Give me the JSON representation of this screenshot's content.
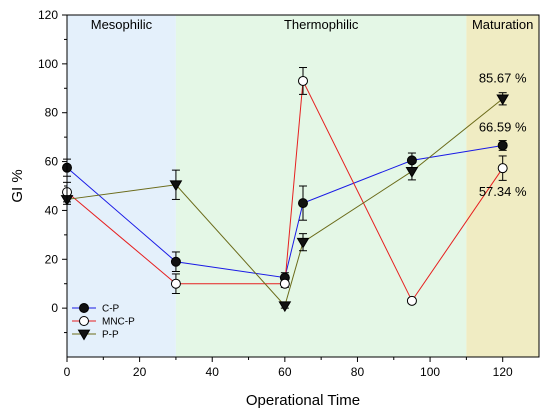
{
  "chart_data": {
    "type": "line",
    "title": "",
    "xlabel": "Operational Time",
    "ylabel": "GI %",
    "xlim": [
      0,
      130
    ],
    "ylim": [
      -20,
      120
    ],
    "xticks": [
      "0",
      "20",
      "40",
      "60",
      "80",
      "100",
      "120"
    ],
    "yticks": [
      "0",
      "20",
      "40",
      "60",
      "80",
      "100",
      "120"
    ],
    "grid": false,
    "legend_position": "bottom-left",
    "phases": [
      {
        "label": "Mesophilic",
        "x_start": 0,
        "x_end": 30,
        "color": "#e4f0fb"
      },
      {
        "label": "Thermophilic",
        "x_start": 30,
        "x_end": 110,
        "color": "#e4f7e6"
      },
      {
        "label": "Maturation",
        "x_start": 110,
        "x_end": 130,
        "color": "#f0ecc3"
      }
    ],
    "series": [
      {
        "name": "C-P",
        "color": "#1a1ae6",
        "marker": "filled-circle",
        "x": [
          0,
          30,
          60,
          65,
          95,
          120
        ],
        "y": [
          57.5,
          19,
          12.5,
          43,
          60.5,
          66.6
        ],
        "err": [
          3.5,
          4,
          2,
          7,
          3,
          2
        ]
      },
      {
        "name": "MNC-P",
        "color": "#e62020",
        "marker": "open-circle",
        "x": [
          0,
          30,
          60,
          65,
          95,
          120
        ],
        "y": [
          47.5,
          10,
          10,
          93,
          3,
          57.3
        ],
        "err": [
          4,
          4,
          1.5,
          5.5,
          1,
          5
        ]
      },
      {
        "name": "P-P",
        "color": "#6b6b1a",
        "marker": "filled-triangle-down",
        "x": [
          0,
          30,
          60,
          65,
          95,
          120
        ],
        "y": [
          44.5,
          50.5,
          1,
          27,
          56,
          85.7
        ],
        "err": [
          2,
          6,
          1,
          3.5,
          3.5,
          2.5
        ]
      }
    ],
    "annotations": [
      {
        "text": "85.67 %",
        "x": 120,
        "y": 94
      },
      {
        "text": "66.59 %",
        "x": 120,
        "y": 74
      },
      {
        "text": "57.34 %",
        "x": 120,
        "y": 47.5
      }
    ]
  }
}
